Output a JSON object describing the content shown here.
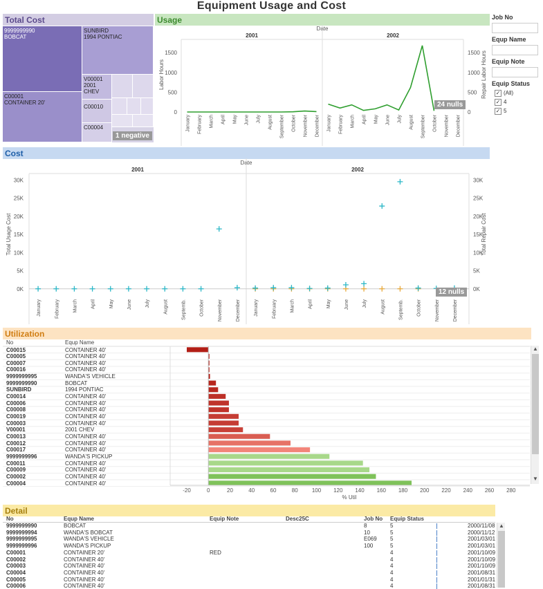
{
  "title": "Equipment Usage and Cost",
  "total_cost": {
    "title": "Total Cost",
    "tiles": [
      {
        "no": "9999999990",
        "name": "BOBCAT"
      },
      {
        "no": "SUNBIRD",
        "name": "1994 PONTIAC"
      },
      {
        "no": "V00001",
        "name": "2001",
        "extra": "CHEV"
      },
      {
        "no": "C00001",
        "name": "CONTAINER 20'"
      },
      {
        "no": "C00010",
        "name": ""
      },
      {
        "no": "C00004",
        "name": ""
      }
    ],
    "negative_badge": "1 negative"
  },
  "usage": {
    "title": "Usage",
    "nulls_badge": "24 nulls"
  },
  "cost": {
    "title": "Cost",
    "nulls_badge": "12 nulls"
  },
  "filters": {
    "job_no": {
      "label": "Job No",
      "value": ""
    },
    "equip_name": {
      "label": "Equp Name",
      "value": ""
    },
    "equip_note": {
      "label": "Equip Note",
      "value": ""
    },
    "equip_status": {
      "label": "Equip Status",
      "options": [
        {
          "label": "(All)",
          "checked": true
        },
        {
          "label": "4",
          "checked": true
        },
        {
          "label": "5",
          "checked": true
        }
      ]
    }
  },
  "utilization": {
    "title": "Utilization",
    "col_no": "No",
    "col_name": "Equp Name",
    "axis_title": "% Util",
    "axis_ticks": [
      -20,
      0,
      20,
      40,
      60,
      80,
      100,
      120,
      140,
      160,
      180,
      200,
      220,
      240,
      260,
      280
    ]
  },
  "detail": {
    "title": "Detail",
    "columns": [
      "No",
      "Equp Name",
      "Equip Note",
      "Desc25C",
      "Job No",
      "Equip Status"
    ],
    "rows": [
      {
        "no": "9999999990",
        "name": "BOBCAT",
        "note": "",
        "desc": "",
        "job": "8",
        "status": "5",
        "date": "2000/11/08"
      },
      {
        "no": "9999999994",
        "name": "WANDA'S BOBCAT",
        "note": "",
        "desc": "",
        "job": "10",
        "status": "5",
        "date": "2000/11/12"
      },
      {
        "no": "9999999995",
        "name": "WANDA'S VEHICLE",
        "note": "",
        "desc": "",
        "job": "E069",
        "status": "5",
        "date": "2001/03/01"
      },
      {
        "no": "9999999996",
        "name": "WANDA'S PICKUP",
        "note": "",
        "desc": "",
        "job": "100",
        "status": "5",
        "date": "2001/03/01"
      },
      {
        "no": "C00001",
        "name": "CONTAINER 20'",
        "note": "RED",
        "desc": "",
        "job": "",
        "status": "4",
        "date": "2001/10/09"
      },
      {
        "no": "C00002",
        "name": "CONTAINER 40'",
        "note": "",
        "desc": "",
        "job": "",
        "status": "4",
        "date": "2001/10/09"
      },
      {
        "no": "C00003",
        "name": "CONTAINER 40'",
        "note": "",
        "desc": "",
        "job": "",
        "status": "4",
        "date": "2001/10/09"
      },
      {
        "no": "C00004",
        "name": "CONTAINER 40'",
        "note": "",
        "desc": "",
        "job": "",
        "status": "4",
        "date": "2001/08/31"
      },
      {
        "no": "C00005",
        "name": "CONTAINER 40'",
        "note": "",
        "desc": "",
        "job": "",
        "status": "4",
        "date": "2001/01/31"
      },
      {
        "no": "C00006",
        "name": "CONTAINER 40'",
        "note": "",
        "desc": "",
        "job": "",
        "status": "4",
        "date": "2001/08/31"
      }
    ]
  },
  "colors": {
    "purple": "#8c7fc0",
    "green_line": "#2e9e2e",
    "cyan": "#2ab7c7",
    "orange": "#e8a838",
    "red_dark": "#b52218",
    "green_bar": "#8ec96a"
  },
  "chart_data": [
    {
      "type": "line",
      "title": "",
      "xlabel": "Date",
      "panels": [
        "2001",
        "2002"
      ],
      "categories": [
        "January",
        "February",
        "March",
        "April",
        "May",
        "June",
        "July",
        "August",
        "September",
        "October",
        "November",
        "December"
      ],
      "series": [
        {
          "name": "Labor Hours",
          "panel": "2001",
          "axis": "left",
          "values": [
            0,
            0,
            0,
            0,
            0,
            0,
            0,
            0,
            0,
            5,
            25,
            10
          ]
        },
        {
          "name": "Repair Labor Hours",
          "panel": "2002",
          "axis": "right",
          "values": [
            200,
            100,
            180,
            40,
            80,
            180,
            50,
            620,
            1680,
            30,
            null,
            null
          ]
        }
      ],
      "left_ylabel": "Labor Hours",
      "right_ylabel": "Repair Labor Hours",
      "ylim": [
        0,
        1800
      ],
      "yticks": [
        0,
        500,
        1000,
        1500
      ]
    },
    {
      "type": "scatter",
      "title": "",
      "xlabel": "Date",
      "panels": [
        "2001",
        "2002"
      ],
      "categories": [
        "January",
        "February",
        "March",
        "April",
        "May",
        "June",
        "July",
        "August",
        "Septemb.",
        "October",
        "November",
        "December"
      ],
      "series": [
        {
          "name": "Total Usage Cost",
          "panel": "2001",
          "values": [
            0,
            0,
            0,
            0,
            0,
            0,
            0,
            0,
            0,
            0,
            16500,
            300
          ]
        },
        {
          "name": "Total Usage Cost",
          "panel": "2002",
          "values": [
            200,
            300,
            300,
            100,
            200,
            1100,
            1400,
            22800,
            29500,
            200,
            100,
            200
          ]
        },
        {
          "name": "Total Repair Cost",
          "panel": "2002",
          "values": [
            0,
            0,
            0,
            0,
            0,
            0,
            0,
            0,
            0,
            0,
            null,
            null
          ]
        }
      ],
      "left_ylabel": "Total Usage Cost",
      "right_ylabel": "Total Repair Cost",
      "ylim": [
        -1000,
        31000
      ],
      "yticks": [
        0,
        5000,
        10000,
        15000,
        20000,
        25000,
        30000
      ],
      "ytick_labels": [
        "0K",
        "5K",
        "10K",
        "15K",
        "20K",
        "25K",
        "30K"
      ]
    },
    {
      "type": "bar",
      "title": "",
      "orientation": "horizontal",
      "xlabel": "% Util",
      "xlim": [
        -20,
        280
      ],
      "rows": [
        {
          "no": "C00015",
          "name": "CONTAINER 40'",
          "value": -20
        },
        {
          "no": "C00005",
          "name": "CONTAINER 40'",
          "value": 0.5
        },
        {
          "no": "C00007",
          "name": "CONTAINER 40'",
          "value": 0.5
        },
        {
          "no": "C00016",
          "name": "CONTAINER 40'",
          "value": 0.5
        },
        {
          "no": "9999999995",
          "name": "WANDA'S VEHICLE",
          "value": 1.5
        },
        {
          "no": "9999999990",
          "name": "BOBCAT",
          "value": 7
        },
        {
          "no": "SUNBIRD",
          "name": "1994 PONTIAC",
          "value": 9
        },
        {
          "no": "C00014",
          "name": "CONTAINER 40'",
          "value": 16
        },
        {
          "no": "C00006",
          "name": "CONTAINER 40'",
          "value": 19
        },
        {
          "no": "C00008",
          "name": "CONTAINER 40'",
          "value": 19
        },
        {
          "no": "C00019",
          "name": "CONTAINER 40'",
          "value": 28
        },
        {
          "no": "C00003",
          "name": "CONTAINER 40'",
          "value": 28
        },
        {
          "no": "V00001",
          "name": "2001 CHEV",
          "value": 32
        },
        {
          "no": "C00013",
          "name": "CONTAINER 40'",
          "value": 57
        },
        {
          "no": "C00012",
          "name": "CONTAINER 40'",
          "value": 76
        },
        {
          "no": "C00017",
          "name": "CONTAINER 40'",
          "value": 94
        },
        {
          "no": "9999999996",
          "name": "WANDA'S PICKUP",
          "value": 112
        },
        {
          "no": "C00011",
          "name": "CONTAINER 40'",
          "value": 143
        },
        {
          "no": "C00009",
          "name": "CONTAINER 40'",
          "value": 149
        },
        {
          "no": "C00002",
          "name": "CONTAINER 40'",
          "value": 155
        },
        {
          "no": "C00004",
          "name": "CONTAINER 40'",
          "value": 188
        }
      ]
    }
  ]
}
